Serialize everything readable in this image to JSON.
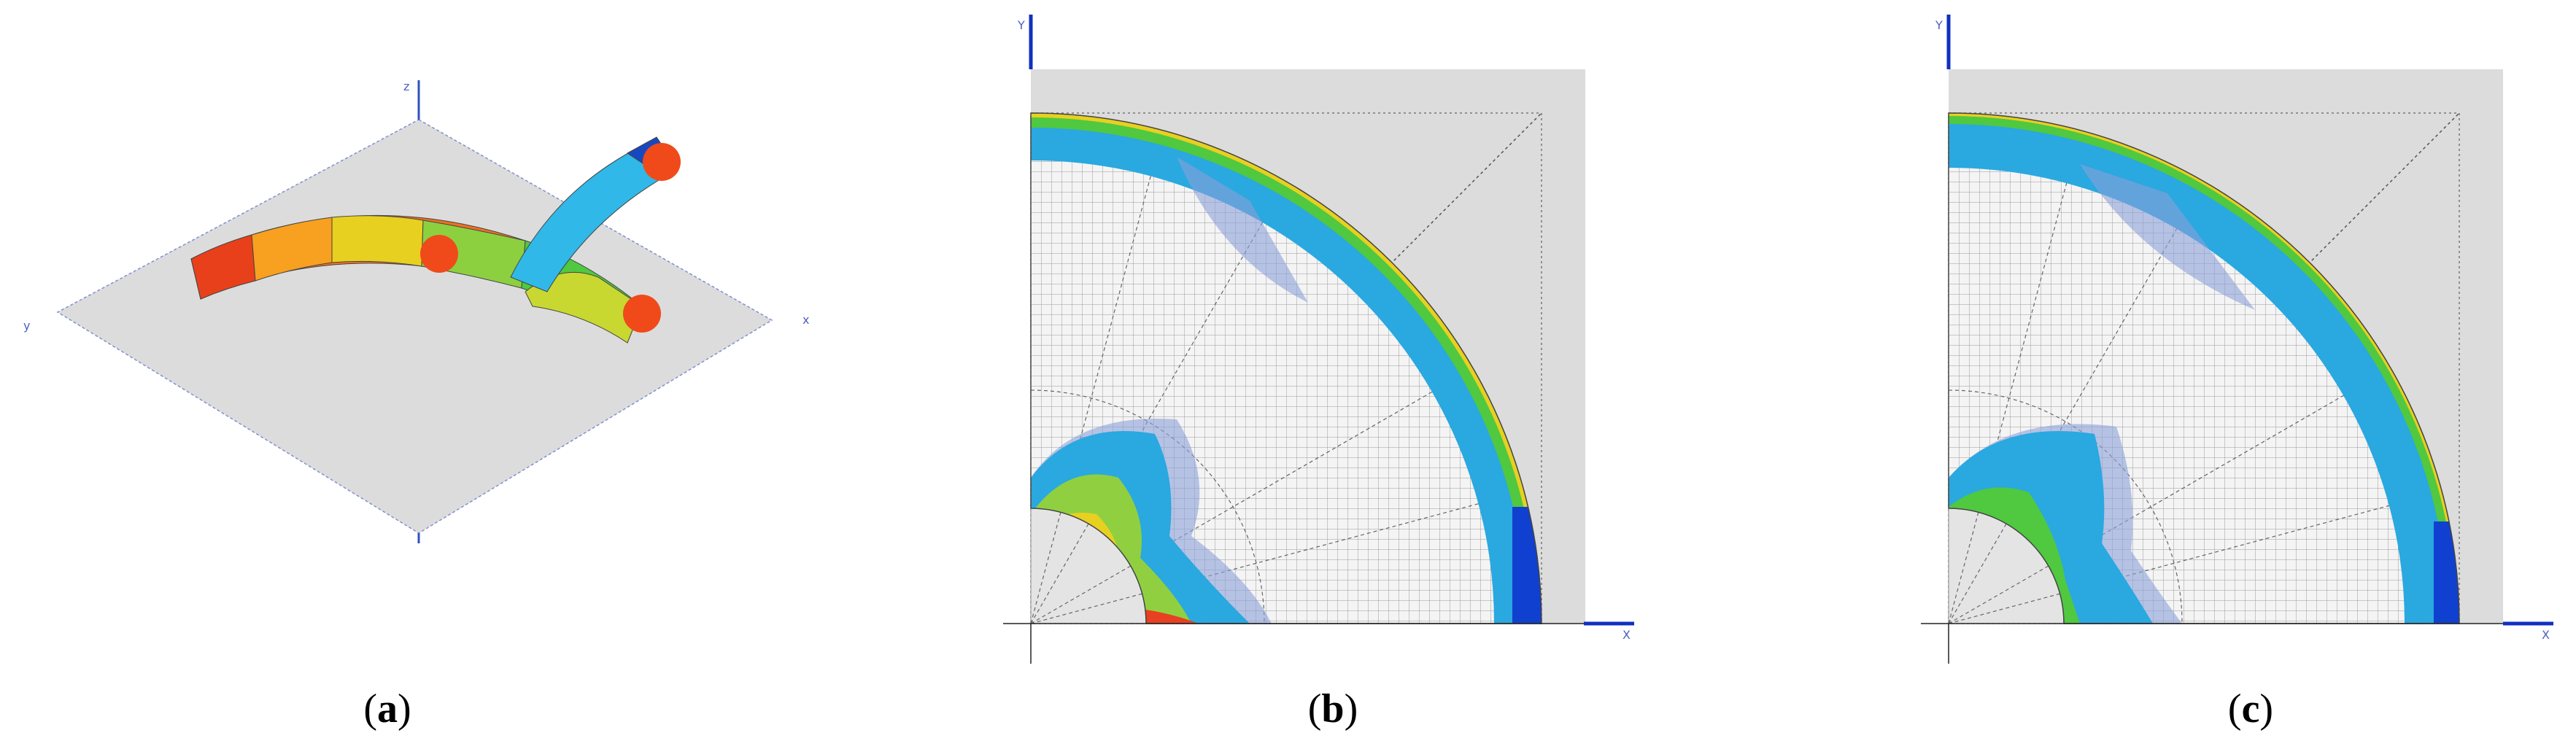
{
  "panels": [
    {
      "axis_labels": [
        "z",
        "y",
        "x"
      ],
      "caption": {
        "open": "(",
        "letter": "a",
        "close": ")"
      }
    },
    {
      "axis_labels": [
        "Y",
        "X"
      ],
      "caption": {
        "open": "(",
        "letter": "b",
        "close": ")"
      }
    },
    {
      "axis_labels": [
        "Y",
        "X"
      ],
      "caption": {
        "open": "(",
        "letter": "c",
        "close": ")"
      }
    }
  ]
}
